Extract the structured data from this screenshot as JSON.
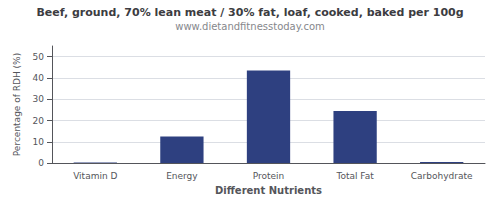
{
  "chart_data": {
    "type": "bar",
    "title": "Beef, ground, 70% lean meat / 30% fat, loaf, cooked, baked per 100g",
    "subtitle": "www.dietandfitnesstoday.com",
    "categories": [
      "Vitamin D",
      "Energy",
      "Protein",
      "Total Fat",
      "Carbohydrate"
    ],
    "values": [
      0.3,
      12.5,
      43.5,
      24.5,
      0.5
    ],
    "color": "#2e4080",
    "xlabel": "Different Nutrients",
    "ylabel": "Percentage of RDH (%)",
    "ylim": [
      0,
      55
    ],
    "yticks": [
      0,
      10,
      20,
      30,
      40,
      50
    ],
    "grid": true
  }
}
